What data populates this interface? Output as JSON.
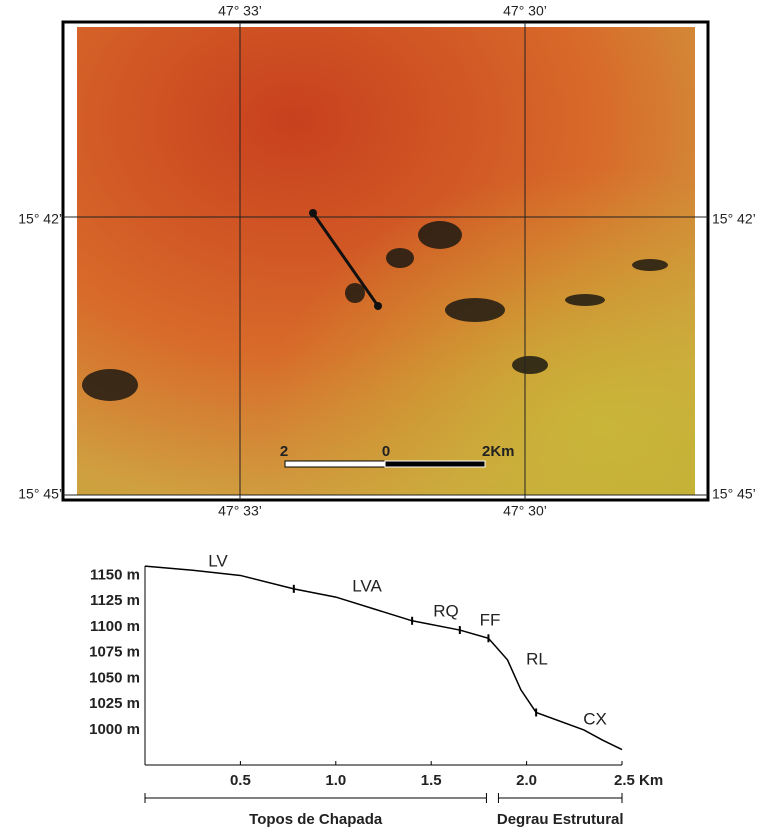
{
  "map": {
    "lon_labels": [
      "47° 33’",
      "47° 30’"
    ],
    "lat_labels": [
      "15° 42’",
      "15° 45’"
    ],
    "scale_labels": [
      "2",
      "0",
      "2Km"
    ]
  },
  "chart_data": {
    "type": "line",
    "x": [
      0,
      0.25,
      0.5,
      0.78,
      1.0,
      1.4,
      1.65,
      1.8,
      1.9,
      1.97,
      2.05,
      2.3,
      2.4,
      2.5
    ],
    "values": [
      1159,
      1155,
      1150,
      1137,
      1129,
      1106,
      1097,
      1089,
      1068,
      1039,
      1017,
      1000,
      990,
      981
    ],
    "color": "#000000",
    "xlim": [
      0,
      2.5
    ],
    "ylim": [
      966,
      1165
    ],
    "xticks": [
      0.5,
      {
        "value": 1,
        "label": "1.0"
      },
      1.5,
      {
        "value": 2,
        "label": "2.0"
      },
      {
        "value": 2.5,
        "label": "2.5 Km"
      }
    ],
    "yticks": [
      {
        "value": 1150,
        "label": "1150 m"
      },
      {
        "value": 1125,
        "label": "1125 m"
      },
      {
        "value": 1100,
        "label": "1100 m"
      },
      {
        "value": 1075,
        "label": "1075 m"
      },
      {
        "value": 1050,
        "label": "1050 m"
      },
      {
        "value": 1025,
        "label": "1025 m"
      },
      {
        "value": 1000,
        "label": "1000 m"
      }
    ],
    "boundaries": [
      0.78,
      1.4,
      1.65,
      1.8,
      2.05
    ],
    "annotations": [
      "LV",
      "LVA",
      "RQ",
      "FF",
      "RL",
      "CX"
    ],
    "sections": [
      "Topos de Chapada",
      "Degrau Estrutural"
    ]
  }
}
